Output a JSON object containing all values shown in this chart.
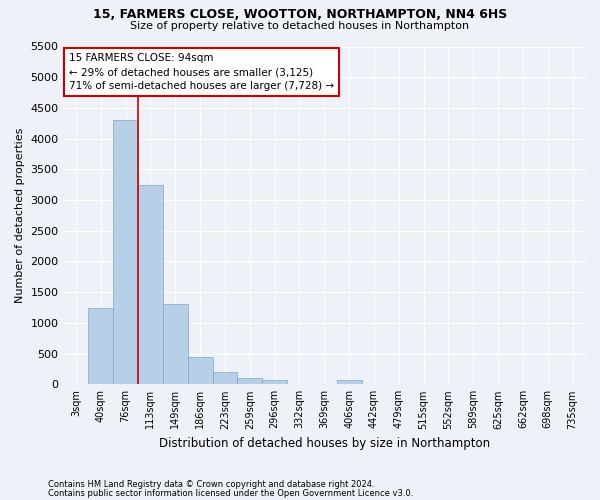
{
  "title1": "15, FARMERS CLOSE, WOOTTON, NORTHAMPTON, NN4 6HS",
  "title2": "Size of property relative to detached houses in Northampton",
  "xlabel": "Distribution of detached houses by size in Northampton",
  "ylabel": "Number of detached properties",
  "footnote1": "Contains HM Land Registry data © Crown copyright and database right 2024.",
  "footnote2": "Contains public sector information licensed under the Open Government Licence v3.0.",
  "categories": [
    "3sqm",
    "40sqm",
    "76sqm",
    "113sqm",
    "149sqm",
    "186sqm",
    "223sqm",
    "259sqm",
    "296sqm",
    "332sqm",
    "369sqm",
    "406sqm",
    "442sqm",
    "479sqm",
    "515sqm",
    "552sqm",
    "589sqm",
    "625sqm",
    "662sqm",
    "698sqm",
    "735sqm"
  ],
  "values": [
    0,
    1250,
    4300,
    3250,
    1300,
    450,
    200,
    100,
    75,
    0,
    0,
    75,
    0,
    0,
    0,
    0,
    0,
    0,
    0,
    0,
    0
  ],
  "bar_color": "#b8cfe8",
  "bar_edge_color": "#7ba7cc",
  "ylim": [
    0,
    5500
  ],
  "yticks": [
    0,
    500,
    1000,
    1500,
    2000,
    2500,
    3000,
    3500,
    4000,
    4500,
    5000,
    5500
  ],
  "marker_bin_index": 2,
  "marker_label": "15 FARMERS CLOSE: 94sqm",
  "annotation_line1": "← 29% of detached houses are smaller (3,125)",
  "annotation_line2": "71% of semi-detached houses are larger (7,728) →",
  "annotation_box_color": "#ffffff",
  "annotation_box_edge": "#cc0000",
  "marker_line_color": "#cc0000",
  "bg_color": "#eef2f8",
  "grid_color": "#ffffff"
}
